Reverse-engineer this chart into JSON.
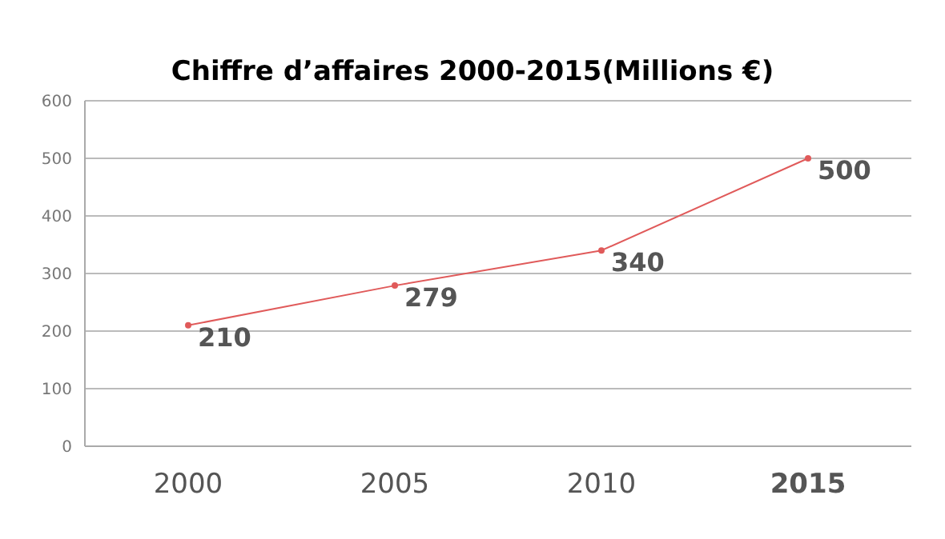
{
  "chart_data": {
    "type": "line",
    "title": "Chiffre d’affaires 2000-2015(Millions €)",
    "categories": [
      "2000",
      "2005",
      "2010",
      "2015"
    ],
    "series": [
      {
        "color": "#e05a5a",
        "values": [
          210,
          279,
          340,
          500
        ]
      }
    ],
    "ylim": [
      0,
      600
    ],
    "yticks": [
      0,
      100,
      200,
      300,
      400,
      500,
      600
    ],
    "grid": "y",
    "marker": "circle",
    "data_labels": true
  }
}
